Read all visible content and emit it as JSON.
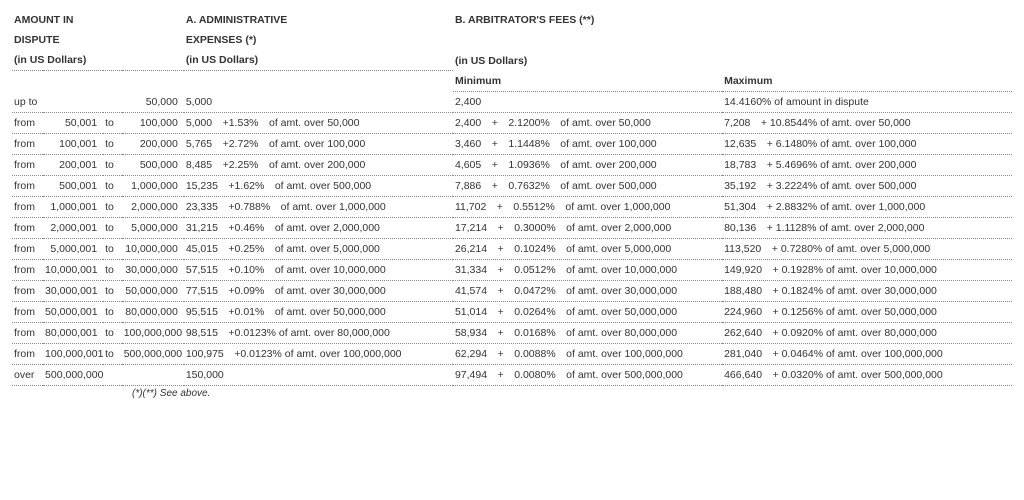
{
  "headers": {
    "amount_title": "AMOUNT IN",
    "amount_sub": "DISPUTE",
    "amount_unit": "(in US Dollars)",
    "admin_title": "A. ADMINISTRATIVE",
    "admin_sub": "EXPENSES (*)",
    "admin_unit": "(in US Dollars)",
    "arb_title": "B. ARBITRATOR'S FEES (**)",
    "arb_unit": "(in US Dollars)",
    "min": "Minimum",
    "max": "Maximum"
  },
  "rows": [
    {
      "from_lbl": "up to",
      "from": "",
      "to_lbl": "",
      "to": "50,000",
      "admin": "5,000",
      "min": "2,400",
      "max": "14.4160% of amount in dispute"
    },
    {
      "from_lbl": "from",
      "from": "50,001",
      "to_lbl": "to",
      "to": "100,000",
      "admin": "5,000 +1.53% of amt. over 50,000",
      "min": "2,400 + 2.1200% of amt. over 50,000",
      "max": "7,208 + 10.8544% of amt. over 50,000"
    },
    {
      "from_lbl": "from",
      "from": "100,001",
      "to_lbl": "to",
      "to": "200,000",
      "admin": "5,765 +2.72% of amt. over 100,000",
      "min": "3,460 + 1.1448% of amt. over 100,000",
      "max": "12,635 + 6.1480% of amt. over 100,000"
    },
    {
      "from_lbl": "from",
      "from": "200,001",
      "to_lbl": "to",
      "to": "500,000",
      "admin": "8,485 +2.25% of amt. over 200,000",
      "min": "4,605 + 1.0936% of amt. over 200,000",
      "max": "18,783 + 5.4696% of amt. over 200,000"
    },
    {
      "from_lbl": "from",
      "from": "500,001",
      "to_lbl": "to",
      "to": "1,000,000",
      "admin": "15,235 +1.62% of amt. over 500,000",
      "min": "7,886 + 0.7632% of amt. over 500,000",
      "max": "35,192 + 3.2224% of amt. over 500,000"
    },
    {
      "from_lbl": "from",
      "from": "1,000,001",
      "to_lbl": "to",
      "to": "2,000,000",
      "admin": "23,335 +0.788% of amt. over 1,000,000",
      "min": "11,702 + 0.5512% of amt. over 1,000,000",
      "max": "51,304 + 2.8832% of amt. over 1,000,000"
    },
    {
      "from_lbl": "from",
      "from": "2,000,001",
      "to_lbl": "to",
      "to": "5,000,000",
      "admin": "31,215 +0.46% of amt. over 2,000,000",
      "min": "17,214 + 0.3000% of amt. over 2,000,000",
      "max": "80,136 + 1.1128% of amt. over 2,000,000"
    },
    {
      "from_lbl": "from",
      "from": "5,000,001",
      "to_lbl": "to",
      "to": "10,000,000",
      "admin": "45,015 +0.25% of amt. over 5,000,000",
      "min": "26,214 + 0.1024% of amt. over 5,000,000",
      "max": "113,520 + 0.7280% of amt. over 5,000,000"
    },
    {
      "from_lbl": "from",
      "from": "10,000,001",
      "to_lbl": "to",
      "to": "30,000,000",
      "admin": "57,515 +0.10% of amt. over 10,000,000",
      "min": "31,334 + 0.0512% of amt. over 10,000,000",
      "max": "149,920 + 0.1928% of amt. over 10,000,000"
    },
    {
      "from_lbl": "from",
      "from": "30,000,001",
      "to_lbl": "to",
      "to": "50,000,000",
      "admin": "77,515 +0.09% of amt. over 30,000,000",
      "min": "41,574 + 0.0472% of amt. over 30,000,000",
      "max": "188,480 + 0.1824% of amt. over 30,000,000"
    },
    {
      "from_lbl": "from",
      "from": "50,000,001",
      "to_lbl": "to",
      "to": "80,000,000",
      "admin": "95,515 +0.01% of amt. over 50,000,000",
      "min": "51,014 + 0.0264% of amt. over 50,000,000",
      "max": "224,960 + 0.1256% of amt. over 50,000,000"
    },
    {
      "from_lbl": "from",
      "from": "80,000,001",
      "to_lbl": "to",
      "to": "100,000,000",
      "admin": "98,515 +0.0123% of amt. over 80,000,000",
      "min": "58,934 + 0.0168% of amt. over 80,000,000",
      "max": "262,640 + 0.0920% of amt. over 80,000,000"
    },
    {
      "from_lbl": "from",
      "from": "100,000,001",
      "to_lbl": "to",
      "to": "500,000,000",
      "admin": "100,975 +0.0123% of amt. over 100,000,000",
      "min": "62,294 + 0.0088% of amt. over 100,000,000",
      "max": "281,040 + 0.0464% of amt. over 100,000,000"
    },
    {
      "from_lbl": "over",
      "from": "500,000,000",
      "to_lbl": "",
      "to": "",
      "admin": "150,000",
      "min": "97,494 + 0.0080% of amt. over 500,000,000",
      "max": "466,640 + 0.0320% of amt. over 500,000,000"
    }
  ],
  "footnote": "(*)(**) See above."
}
